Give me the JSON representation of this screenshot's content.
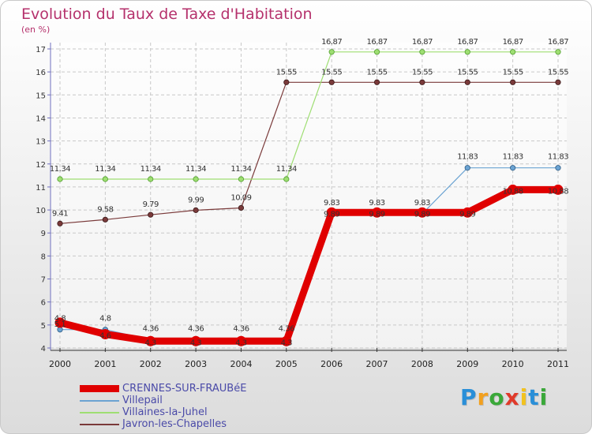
{
  "chart_data": {
    "type": "line",
    "title": "Evolution du Taux de Taxe d'Habitation",
    "ylabel": "(en %)",
    "xlabel": "",
    "categories": [
      "2000",
      "2001",
      "2002",
      "2003",
      "2004",
      "2005",
      "2006",
      "2007",
      "2008",
      "2009",
      "2010",
      "2011"
    ],
    "ylim": [
      4,
      17
    ],
    "yticks": [
      4,
      5,
      6,
      7,
      8,
      9,
      10,
      11,
      12,
      13,
      14,
      15,
      16,
      17
    ],
    "series": [
      {
        "name": "CRENNES-SUR-FRAUBéE",
        "color": "#e00000",
        "values": [
          5.1,
          4.6,
          4.3,
          4.3,
          4.3,
          4.3,
          9.89,
          9.89,
          9.89,
          9.89,
          10.88,
          10.88
        ],
        "labels": [
          "5.1",
          "4.6",
          "4.3",
          "4.3",
          "4.3",
          "4.3",
          "9.89",
          "9.89",
          "9.89",
          "9.89",
          "10.88",
          "10.88"
        ]
      },
      {
        "name": "Villepail",
        "color": "#6ba3d2",
        "values": [
          4.8,
          4.8,
          4.36,
          4.36,
          4.36,
          4.36,
          9.83,
          9.83,
          9.83,
          11.83,
          11.83,
          11.83
        ],
        "labels": [
          "4.8",
          "4.8",
          "4.36",
          "4.36",
          "4.36",
          "4.36",
          "9.83",
          "9.83",
          "9.83",
          "11.83",
          "11.83",
          "11.83"
        ]
      },
      {
        "name": "Villaines-la-Juhel",
        "color": "#9ede72",
        "values": [
          11.34,
          11.34,
          11.34,
          11.34,
          11.34,
          11.34,
          16.87,
          16.87,
          16.87,
          16.87,
          16.87,
          16.87
        ],
        "labels": [
          "11.34",
          "11.34",
          "11.34",
          "11.34",
          "11.34",
          "11.34",
          "16.87",
          "16.87",
          "16.87",
          "16.87",
          "16.87",
          "16.87"
        ]
      },
      {
        "name": "Javron-les-Chapelles",
        "color": "#7a3a3a",
        "values": [
          9.41,
          9.58,
          9.79,
          9.99,
          10.09,
          15.55,
          15.55,
          15.55,
          15.55,
          15.55,
          15.55,
          15.55
        ],
        "labels": [
          "9.41",
          "9.58",
          "9.79",
          "9.99",
          "10.09",
          "15.55",
          "15.55",
          "15.55",
          "15.55",
          "15.55",
          "15.55",
          "15.55"
        ]
      }
    ],
    "legend": [
      "CRENNES-SUR-FRAUBéE",
      "Villepail",
      "Villaines-la-Juhel",
      "Javron-les-Chapelles"
    ],
    "legend_position": "bottom-left",
    "grid": true
  },
  "logo": {
    "letters": [
      "P",
      "r",
      "o",
      "x",
      "i",
      "t",
      "i"
    ],
    "colors": [
      "#2a8fd8",
      "#f2a01e",
      "#3aa839",
      "#e03a2a",
      "#f2c21e",
      "#2a8fd8",
      "#3aa839"
    ]
  }
}
